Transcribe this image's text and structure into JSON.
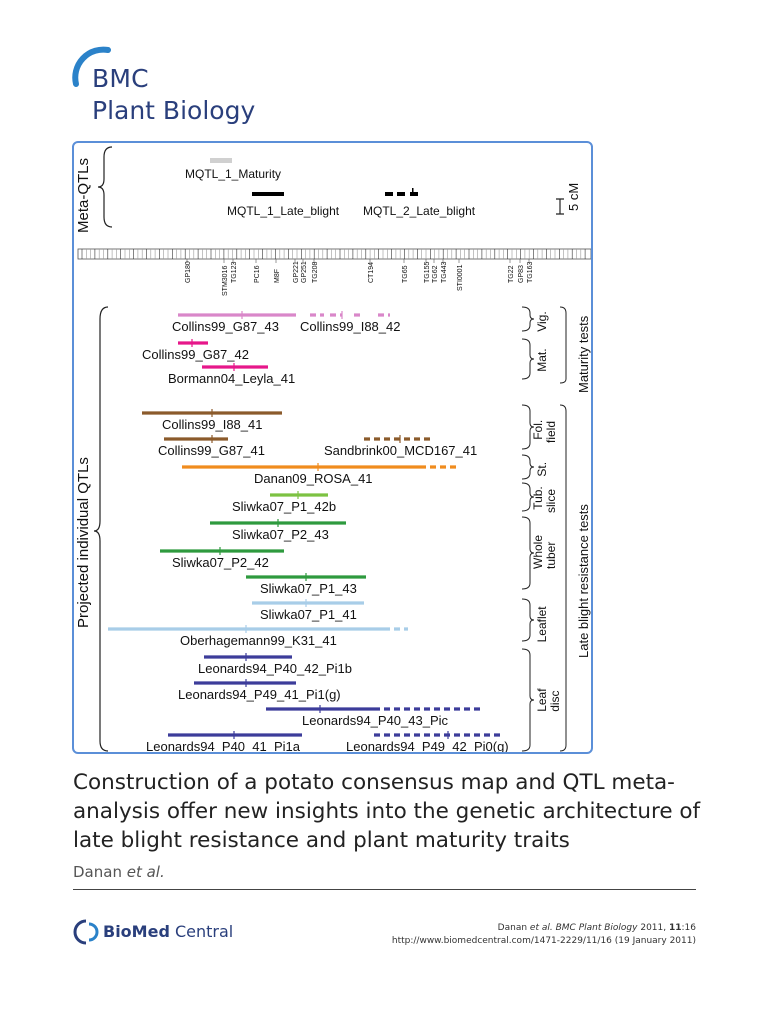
{
  "journal": {
    "line1": "BMC",
    "line2": "Plant Biology",
    "color": "#2a3f7c",
    "arc_color": "#2b82c9"
  },
  "figure": {
    "group_labels": {
      "meta": "Meta-QTLs",
      "projected": "Projected individual QTLs",
      "maturity_tests": "Maturity tests",
      "late_blight_tests": "Late blight resistance tests"
    },
    "scale_label": "5 cM",
    "meta_qtls": [
      {
        "name": "MQTL_1_Maturity",
        "color": "#d0d0d0"
      },
      {
        "name": "MQTL_1_Late_blight",
        "color": "#000000"
      },
      {
        "name": "MQTL_2_Late_blight",
        "color": "#000000"
      }
    ],
    "markers": [
      "GP180",
      "STM3016",
      "TG123",
      "PC16",
      "M8F",
      "GP221",
      "GP251",
      "TG208",
      "CT194",
      "TG65",
      "TG155",
      "TG62",
      "TG443",
      "STI0001",
      "TG22",
      "GP83",
      "TG163"
    ],
    "test_labels": [
      "Vig.",
      "Mat.",
      "Fol. field",
      "St.",
      "Tub. slice",
      "Whole tuber",
      "Leaflet",
      "Leaf disc"
    ],
    "qtls": [
      {
        "name": "Collins99_G87_43",
        "color": "#d987c9"
      },
      {
        "name": "Collins99_I88_42",
        "color": "#d987c9"
      },
      {
        "name": "Collins99_G87_42",
        "color": "#e6178a"
      },
      {
        "name": "Bormann04_Leyla_41",
        "color": "#e6178a"
      },
      {
        "name": "Collins99_I88_41",
        "color": "#8b5a2b"
      },
      {
        "name": "Collins99_G87_41",
        "color": "#8b5a2b"
      },
      {
        "name": "Sandbrink00_MCD167_41",
        "color": "#8b5a2b"
      },
      {
        "name": "Danan09_ROSA_41",
        "color": "#f08c1e"
      },
      {
        "name": "Sliwka07_P1_42b",
        "color": "#7cc242"
      },
      {
        "name": "Sliwka07_P2_43",
        "color": "#2e9a3e"
      },
      {
        "name": "Sliwka07_P2_42",
        "color": "#2e9a3e"
      },
      {
        "name": "Sliwka07_P1_43",
        "color": "#2e9a3e"
      },
      {
        "name": "Sliwka07_P1_41",
        "color": "#a8cde8"
      },
      {
        "name": "Oberhagemann99_K31_41",
        "color": "#a8cde8"
      },
      {
        "name": "Leonards94_P40_42_Pi1b",
        "color": "#3c3c9a"
      },
      {
        "name": "Leonards94_P49_41_Pi1(g)",
        "color": "#3c3c9a"
      },
      {
        "name": "Leonards94_P40_43_Pic",
        "color": "#3c3c9a"
      },
      {
        "name": "Leonards94_P40_41_Pi1a",
        "color": "#3c3c9a"
      },
      {
        "name": "Leonards94_P49_42_Pi0(g)",
        "color": "#3c3c9a"
      }
    ]
  },
  "article": {
    "title": "Construction of a potato consensus map and QTL meta-analysis offer new insights into the genetic architecture of late blight resistance and plant maturity traits",
    "authors_main": "Danan",
    "authors_etal": "et al."
  },
  "publisher": {
    "bold": "BioMed",
    "rest": " Central"
  },
  "citation": {
    "author": "Danan",
    "etal": "et al.",
    "journal": "BMC Plant Biology",
    "year_pre": "2011,",
    "volume": "11",
    "pages": ":16",
    "url": "http://www.biomedcentral.com/1471-2229/11/16",
    "date": "(19 January 2011)"
  }
}
